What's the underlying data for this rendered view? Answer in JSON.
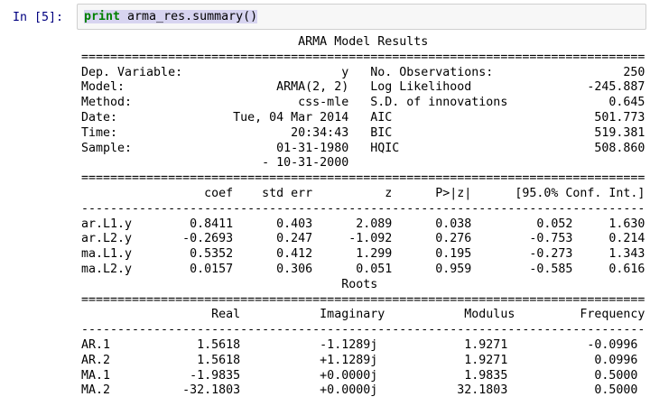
{
  "notebook": {
    "prompt": "In [5]:",
    "code": {
      "keyword": "print",
      "rest": " arma_res.summary()"
    }
  },
  "output": {
    "title": "ARMA Model Results",
    "info": {
      "left": [
        {
          "label": "Dep. Variable:",
          "value": "y"
        },
        {
          "label": "Model:",
          "value": "ARMA(2, 2)"
        },
        {
          "label": "Method:",
          "value": "css-mle"
        },
        {
          "label": "Date:",
          "value": "Tue, 04 Mar 2014"
        },
        {
          "label": "Time:",
          "value": "20:34:43"
        },
        {
          "label": "Sample:",
          "value": "01-31-1980"
        },
        {
          "label": "",
          "value": "- 10-31-2000"
        }
      ],
      "right": [
        {
          "label": "No. Observations:",
          "value": "250"
        },
        {
          "label": "Log Likelihood",
          "value": "-245.887"
        },
        {
          "label": "S.D. of innovations",
          "value": "0.645"
        },
        {
          "label": "AIC",
          "value": "501.773"
        },
        {
          "label": "BIC",
          "value": "519.381"
        },
        {
          "label": "HQIC",
          "value": "508.860"
        }
      ]
    },
    "coefficients": {
      "headers": [
        "",
        "coef",
        "std err",
        "z",
        "P>|z|",
        "[95.0% Conf. Int.]"
      ],
      "rows": [
        {
          "name": "ar.L1.y",
          "coef": "0.8411",
          "std_err": "0.403",
          "z": "2.089",
          "p": "0.038",
          "ci_low": "0.052",
          "ci_high": "1.630"
        },
        {
          "name": "ar.L2.y",
          "coef": "-0.2693",
          "std_err": "0.247",
          "z": "-1.092",
          "p": "0.276",
          "ci_low": "-0.753",
          "ci_high": "0.214"
        },
        {
          "name": "ma.L1.y",
          "coef": "0.5352",
          "std_err": "0.412",
          "z": "1.299",
          "p": "0.195",
          "ci_low": "-0.273",
          "ci_high": "1.343"
        },
        {
          "name": "ma.L2.y",
          "coef": "0.0157",
          "std_err": "0.306",
          "z": "0.051",
          "p": "0.959",
          "ci_low": "-0.585",
          "ci_high": "0.616"
        }
      ]
    },
    "roots": {
      "title": "Roots",
      "headers": [
        "",
        "Real",
        "Imaginary",
        "Modulus",
        "Frequency"
      ],
      "rows": [
        {
          "name": "AR.1",
          "real": "1.5618",
          "imaginary": "-1.1289j",
          "modulus": "1.9271",
          "frequency": "-0.0996"
        },
        {
          "name": "AR.2",
          "real": "1.5618",
          "imaginary": "+1.1289j",
          "modulus": "1.9271",
          "frequency": "0.0996"
        },
        {
          "name": "MA.1",
          "real": "-1.9835",
          "imaginary": "+0.0000j",
          "modulus": "1.9835",
          "frequency": "0.5000"
        },
        {
          "name": "MA.2",
          "real": "-32.1803",
          "imaginary": "+0.0000j",
          "modulus": "32.1803",
          "frequency": "0.5000"
        }
      ]
    },
    "lines": [
      "                              ARMA Model Results",
      "==============================================================================",
      "Dep. Variable:                      y   No. Observations:                  250",
      "Model:                     ARMA(2, 2)   Log Likelihood                -245.887",
      "Method:                       css-mle   S.D. of innovations              0.645",
      "Date:                Tue, 04 Mar 2014   AIC                            501.773",
      "Time:                        20:34:43   BIC                            519.381",
      "Sample:                    01-31-1980   HQIC                           508.860",
      "                         - 10-31-2000",
      "==============================================================================",
      "                 coef    std err          z      P>|z|      [95.0% Conf. Int.]",
      "------------------------------------------------------------------------------",
      "ar.L1.y        0.8411      0.403      2.089      0.038         0.052     1.630",
      "ar.L2.y       -0.2693      0.247     -1.092      0.276        -0.753     0.214",
      "ma.L1.y        0.5352      0.412      1.299      0.195        -0.273     1.343",
      "ma.L2.y        0.0157      0.306      0.051      0.959        -0.585     0.616",
      "                                    Roots",
      "==============================================================================",
      "                  Real           Imaginary           Modulus         Frequency",
      "------------------------------------------------------------------------------",
      "AR.1            1.5618           -1.1289j            1.9271           -0.0996",
      "AR.2            1.5618           +1.1289j            1.9271            0.0996",
      "MA.1           -1.9835           +0.0000j            1.9835            0.5000",
      "MA.2          -32.1803           +0.0000j           32.1803            0.5000"
    ]
  },
  "colors": {
    "prompt_text": "#000080",
    "keyword_green": "#008000",
    "selection_highlight": "#d7d4f0",
    "input_background": "#f7f7f7",
    "input_border": "#cfcfcf",
    "output_text": "#000000",
    "page_background": "#ffffff"
  }
}
